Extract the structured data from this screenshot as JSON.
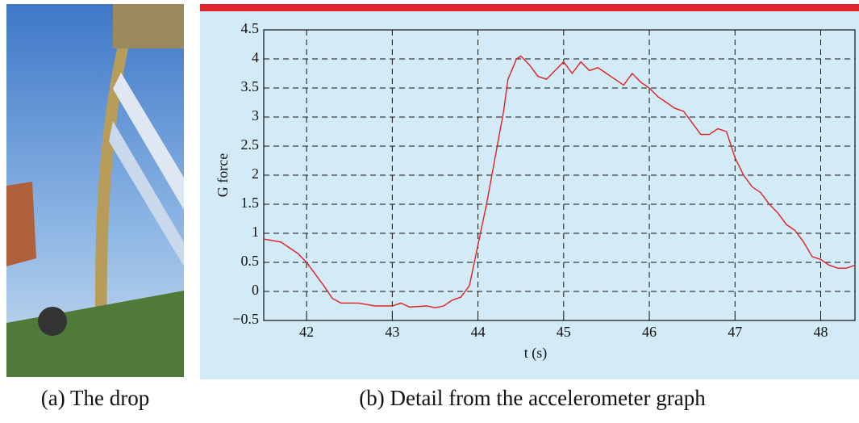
{
  "chart_data": {
    "type": "line",
    "xlabel": "t (s)",
    "ylabel": "G force",
    "x": [
      41.5,
      41.7,
      41.8,
      41.9,
      42.0,
      42.1,
      42.2,
      42.3,
      42.4,
      42.6,
      42.8,
      43.0,
      43.1,
      43.2,
      43.4,
      43.5,
      43.6,
      43.7,
      43.8,
      43.9,
      44.0,
      44.1,
      44.2,
      44.3,
      44.35,
      44.45,
      44.5,
      44.6,
      44.7,
      44.8,
      44.9,
      45.0,
      45.1,
      45.2,
      45.3,
      45.4,
      45.5,
      45.6,
      45.7,
      45.8,
      45.9,
      46.0,
      46.1,
      46.2,
      46.3,
      46.4,
      46.5,
      46.6,
      46.7,
      46.8,
      46.9,
      47.0,
      47.1,
      47.2,
      47.3,
      47.4,
      47.5,
      47.6,
      47.7,
      47.8,
      47.9,
      48.0,
      48.1,
      48.2,
      48.3,
      48.4
    ],
    "series": [
      {
        "color": "#e02020",
        "values": [
          0.9,
          0.85,
          0.75,
          0.65,
          0.5,
          0.3,
          0.1,
          -0.12,
          -0.2,
          -0.2,
          -0.25,
          -0.25,
          -0.2,
          -0.27,
          -0.25,
          -0.28,
          -0.25,
          -0.15,
          -0.1,
          0.1,
          0.8,
          1.5,
          2.3,
          3.1,
          3.65,
          4.0,
          4.05,
          3.9,
          3.7,
          3.65,
          3.8,
          3.95,
          3.75,
          3.95,
          3.8,
          3.85,
          3.75,
          3.65,
          3.55,
          3.75,
          3.6,
          3.5,
          3.35,
          3.25,
          3.15,
          3.1,
          2.9,
          2.7,
          2.7,
          2.8,
          2.75,
          2.3,
          2.0,
          1.8,
          1.7,
          1.5,
          1.35,
          1.15,
          1.05,
          0.85,
          0.6,
          0.55,
          0.45,
          0.4,
          0.4,
          0.45
        ]
      }
    ],
    "xlim": [
      41.5,
      48.4
    ],
    "xticks": [
      42,
      43,
      44,
      45,
      46,
      47,
      48
    ],
    "ylim": [
      -0.5,
      4.5
    ],
    "yticks": [
      {
        "value": -0.5,
        "label": "−0.5"
      },
      0,
      0.5,
      1,
      1.5,
      2,
      2.5,
      3,
      3.5,
      4,
      4.5
    ],
    "grid": true
  },
  "captions": [
    "(a) The drop",
    "(b) Detail from the accelerometer graph"
  ]
}
